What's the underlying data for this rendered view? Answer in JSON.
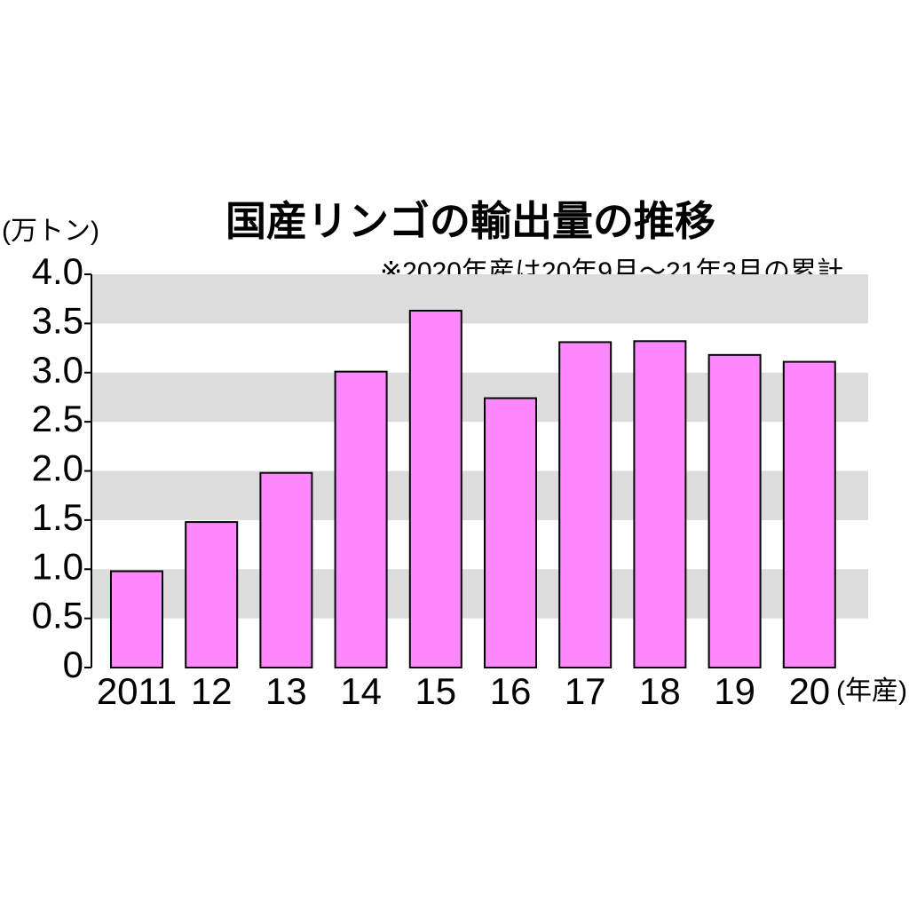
{
  "chart_data": {
    "type": "bar",
    "title": "国産リンゴの輸出量の推移",
    "subtitle": "※2020年産は20年9月～21年3月の累計",
    "y_label": "(万トン)",
    "x_label": "(年産)",
    "categories": [
      "2011",
      "12",
      "13",
      "14",
      "15",
      "16",
      "17",
      "18",
      "19",
      "20"
    ],
    "values": [
      0.98,
      1.48,
      1.98,
      3.01,
      3.63,
      2.74,
      3.31,
      3.32,
      3.18,
      3.11
    ],
    "color": "#ff88ff",
    "ylim": [
      0,
      4
    ],
    "yticks": [
      0,
      0.5,
      {
        "value": 1,
        "label": "1.0"
      },
      1.5,
      {
        "value": 2,
        "label": "2.0"
      },
      2.5,
      {
        "value": 3,
        "label": "3.0"
      },
      3.5,
      {
        "value": 4,
        "label": "4.0"
      }
    ],
    "grid": true
  }
}
